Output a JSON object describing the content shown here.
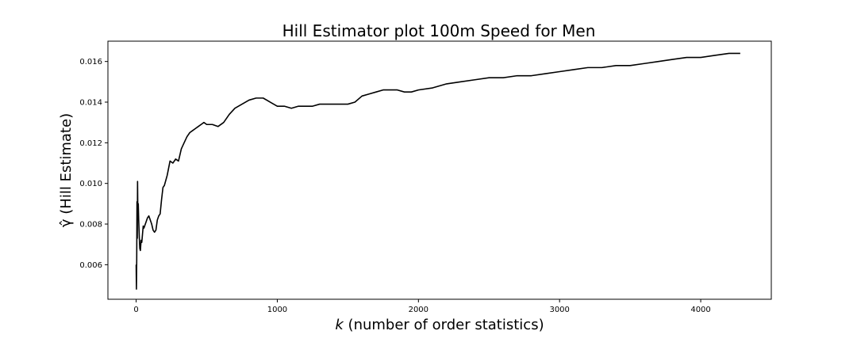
{
  "chart_data": {
    "type": "line",
    "title": "Hill Estimator plot 100m Speed for Men",
    "xlabel_var": "k",
    "xlabel_text": " (number of order statistics)",
    "ylabel": "γ̂ (Hill Estimate)",
    "xlim": [
      -200,
      4500
    ],
    "ylim": [
      0.0043,
      0.017
    ],
    "x_ticks": [
      0,
      1000,
      2000,
      3000,
      4000
    ],
    "y_ticks": [
      0.006,
      0.008,
      0.01,
      0.012,
      0.014,
      0.016
    ],
    "y_tick_decimals": 3,
    "grid": false,
    "line_color": "#000000",
    "series": [
      {
        "x": [
          0,
          2,
          4,
          6,
          8,
          10,
          12,
          15,
          18,
          22,
          26,
          30,
          35,
          40,
          45,
          50,
          55,
          60,
          65,
          70,
          75,
          80,
          90,
          100,
          110,
          120,
          130,
          140,
          150,
          160,
          170,
          180,
          190,
          200,
          220,
          240,
          260,
          280,
          300,
          320,
          340,
          360,
          380,
          400,
          420,
          440,
          460,
          480,
          500,
          540,
          580,
          620,
          660,
          700,
          750,
          800,
          850,
          900,
          950,
          1000,
          1050,
          1100,
          1150,
          1200,
          1250,
          1300,
          1350,
          1400,
          1450,
          1500,
          1550,
          1600,
          1650,
          1700,
          1750,
          1800,
          1850,
          1900,
          1950,
          2000,
          2100,
          2200,
          2300,
          2400,
          2500,
          2600,
          2700,
          2800,
          2900,
          3000,
          3100,
          3200,
          3300,
          3400,
          3500,
          3600,
          3700,
          3800,
          3900,
          4000,
          4100,
          4200,
          4280
        ],
        "y": [
          0.006,
          0.0048,
          0.0062,
          0.0091,
          0.0073,
          0.0101,
          0.0085,
          0.009,
          0.0082,
          0.0074,
          0.0068,
          0.0067,
          0.0072,
          0.0071,
          0.0075,
          0.0079,
          0.0078,
          0.0079,
          0.008,
          0.0081,
          0.0082,
          0.0083,
          0.0084,
          0.0082,
          0.008,
          0.0077,
          0.0076,
          0.0077,
          0.0082,
          0.0084,
          0.0085,
          0.0092,
          0.0098,
          0.0099,
          0.0104,
          0.0111,
          0.011,
          0.0112,
          0.0111,
          0.0117,
          0.012,
          0.0123,
          0.0125,
          0.0126,
          0.0127,
          0.0128,
          0.0129,
          0.013,
          0.0129,
          0.0129,
          0.0128,
          0.013,
          0.0134,
          0.0137,
          0.0139,
          0.0141,
          0.0142,
          0.0142,
          0.014,
          0.0138,
          0.0138,
          0.0137,
          0.0138,
          0.0138,
          0.0138,
          0.0139,
          0.0139,
          0.0139,
          0.0139,
          0.0139,
          0.014,
          0.0143,
          0.0144,
          0.0145,
          0.0146,
          0.0146,
          0.0146,
          0.0145,
          0.0145,
          0.0146,
          0.0147,
          0.0149,
          0.015,
          0.0151,
          0.0152,
          0.0152,
          0.0153,
          0.0153,
          0.0154,
          0.0155,
          0.0156,
          0.0157,
          0.0157,
          0.0158,
          0.0158,
          0.0159,
          0.016,
          0.0161,
          0.0162,
          0.0162,
          0.0163,
          0.0164,
          0.0164
        ]
      }
    ]
  }
}
